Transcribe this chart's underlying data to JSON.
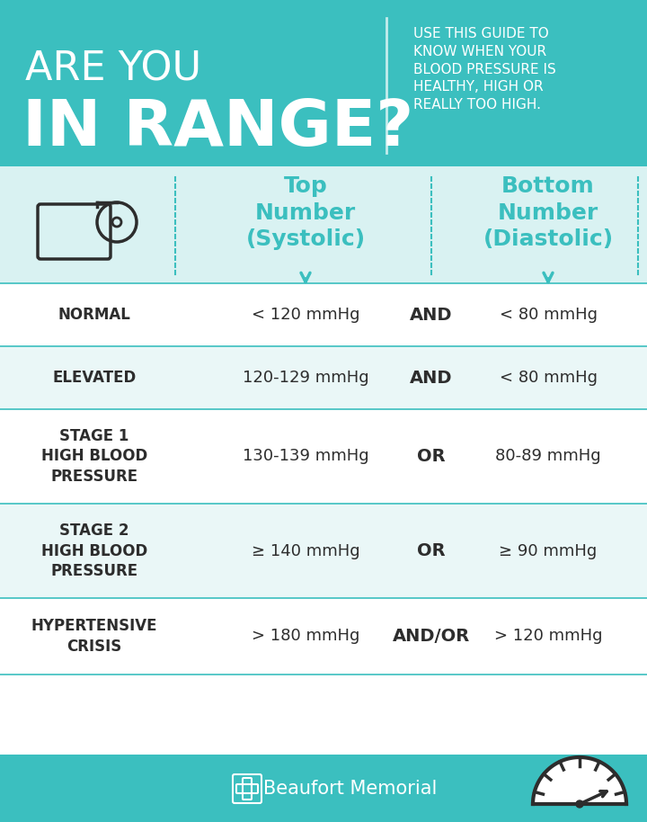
{
  "bg_teal": "#3bbfbf",
  "bg_teal_dark": "#2fa8a8",
  "bg_light": "#f0fafa",
  "header_bg": "#3bbfbf",
  "footer_bg": "#3bbfbf",
  "teal_text": "#3bbfbf",
  "dark_text": "#2d2d2d",
  "white": "#ffffff",
  "row_bg_white": "#ffffff",
  "row_bg_light": "#e8f7f7",
  "separator_color": "#3bbfbf",
  "title_line1": "ARE YOU",
  "title_line2": "IN RANGE?",
  "subtitle": "USE THIS GUIDE TO\nKNOW WHEN YOUR\nBLOOD PRESSURE IS\nHEALTHY, HIGH OR\nREALLY TOO HIGH.",
  "col1_header_line1": "Top",
  "col1_header_line2": "Number",
  "col1_header_line3": "(Systolic)",
  "col2_header_line1": "Bottom",
  "col2_header_line2": "Number",
  "col2_header_line3": "(Diastolic)",
  "rows": [
    {
      "label": "NORMAL",
      "systolic": "< 120 mmHg",
      "connector": "AND",
      "diastolic": "< 80 mmHg"
    },
    {
      "label": "ELEVATED",
      "systolic": "120-129 mmHg",
      "connector": "AND",
      "diastolic": "< 80 mmHg"
    },
    {
      "label": "STAGE 1\nHIGH BLOOD\nPRESSURE",
      "systolic": "130-139 mmHg",
      "connector": "OR",
      "diastolic": "80-89 mmHg"
    },
    {
      "label": "STAGE 2\nHIGH BLOOD\nPRESSURE",
      "systolic": "≥ 140 mmHg",
      "connector": "OR",
      "diastolic": "≥ 90 mmHg"
    },
    {
      "label": "HYPERTENSIVE\nCRISIS",
      "systolic": "> 180 mmHg",
      "connector": "AND/OR",
      "diastolic": "> 120 mmHg"
    }
  ],
  "footer_text": "Beaufort Memorial"
}
